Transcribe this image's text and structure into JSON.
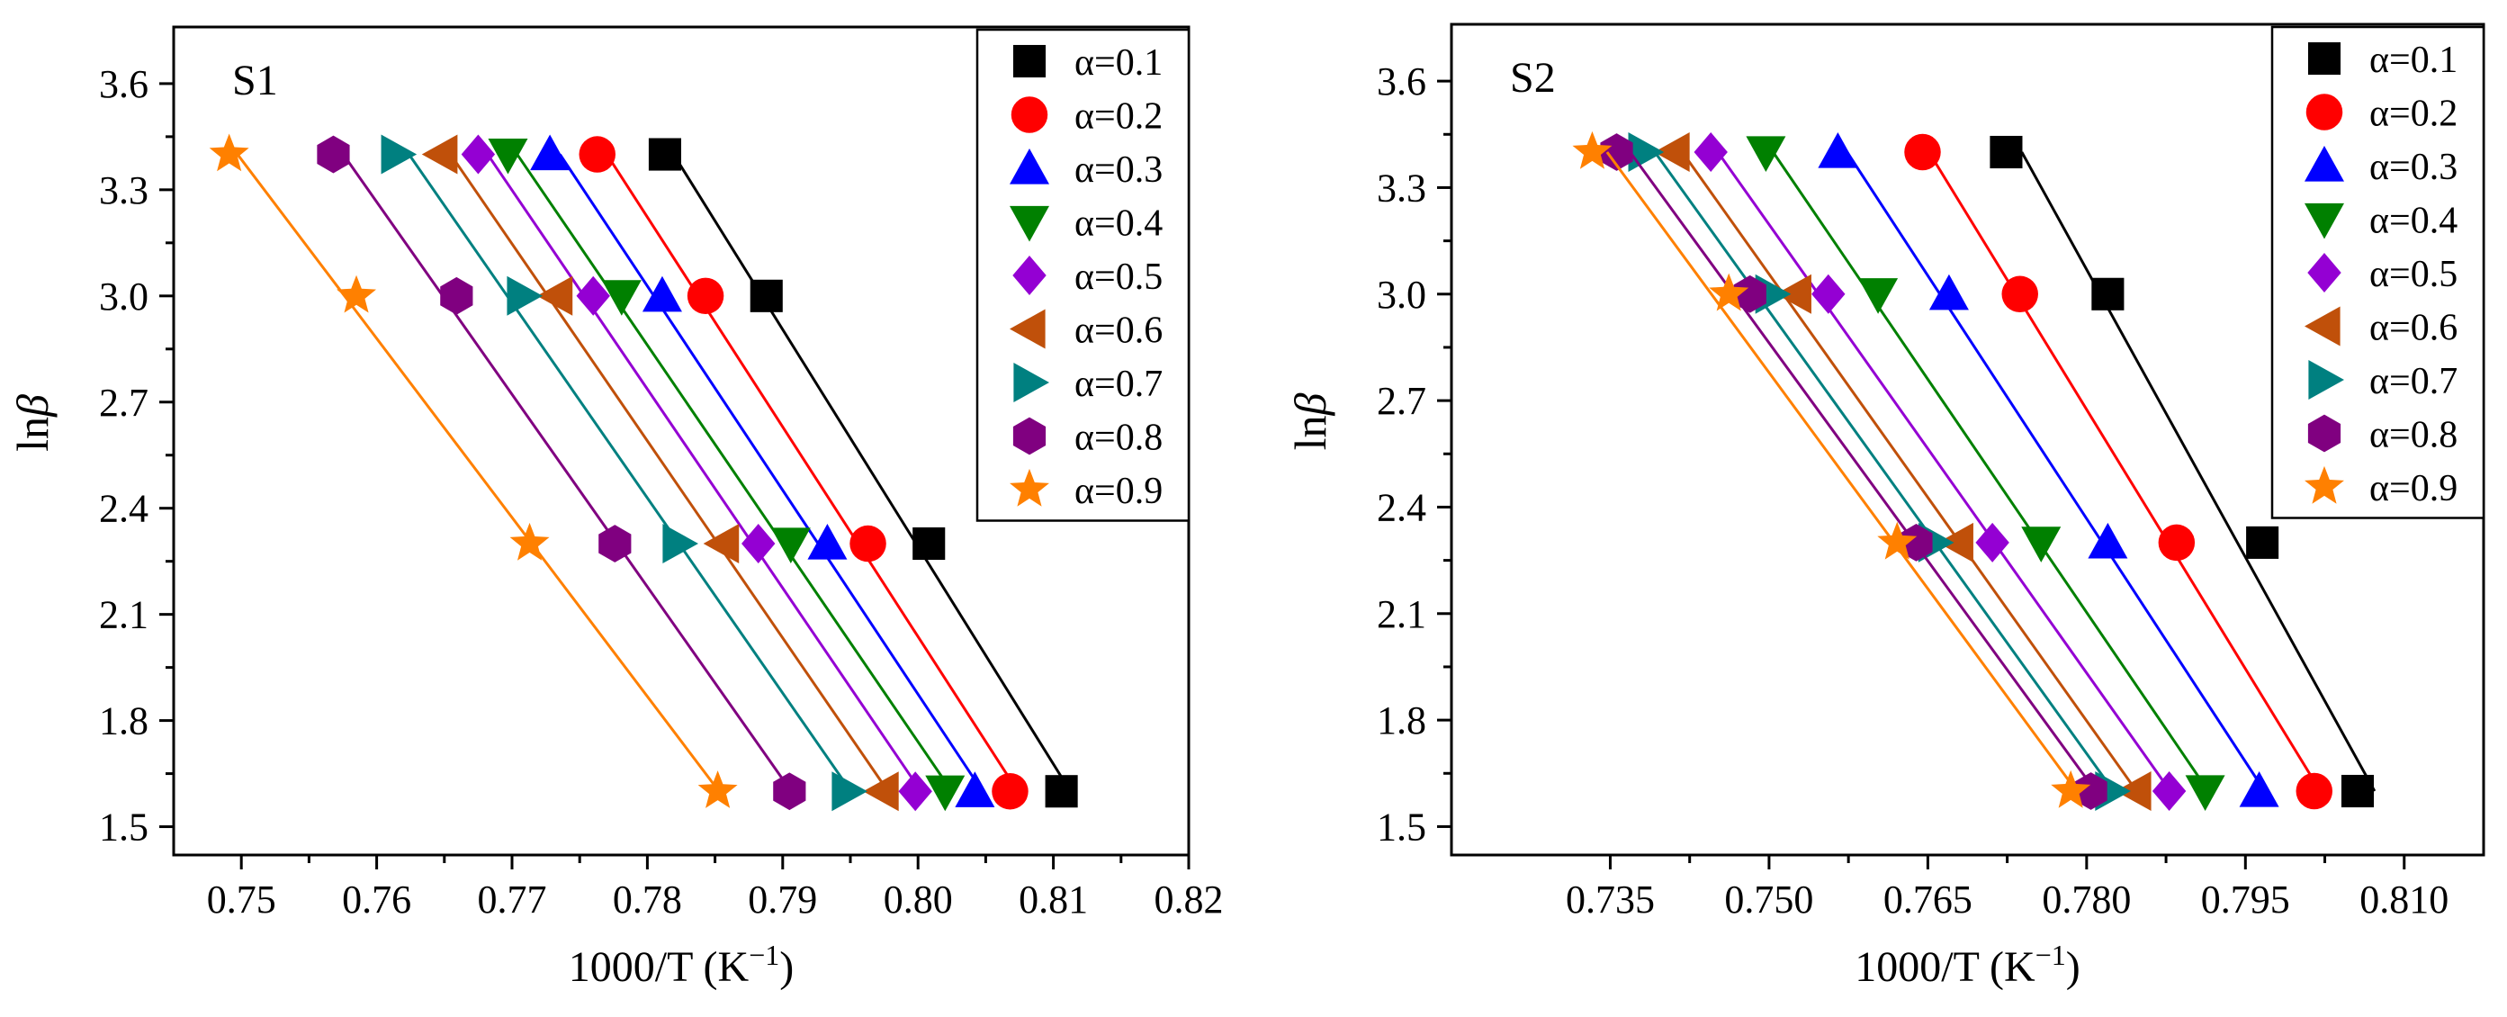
{
  "colors": {
    "axis": "#000000",
    "series": [
      "#000000",
      "#ff0000",
      "#0000ff",
      "#008000",
      "#9400d3",
      "#c0500a",
      "#008080",
      "#800080",
      "#ff8000"
    ]
  },
  "chart_data": [
    {
      "type": "scatter",
      "panel_label": "S1",
      "xlabel": "1000/T (K−1)",
      "xlabel_main": "1000/T (K",
      "xlabel_sup": "−1",
      "xlabel_close": ")",
      "ylabel_main": "ln",
      "ylabel_italic": "β",
      "xlim": [
        0.745,
        0.82
      ],
      "ylim": [
        1.42,
        3.76
      ],
      "x_ticks": [
        0.75,
        0.76,
        0.77,
        0.78,
        0.79,
        0.8,
        0.81,
        0.82
      ],
      "x_tick_labels": [
        "0.75",
        "0.76",
        "0.77",
        "0.78",
        "0.79",
        "0.80",
        "0.81",
        "0.82"
      ],
      "y_ticks": [
        1.5,
        1.8,
        2.1,
        2.4,
        2.7,
        3.0,
        3.3,
        3.6
      ],
      "y_tick_labels": [
        "1.5",
        "1.8",
        "2.1",
        "2.4",
        "2.7",
        "3.0",
        "3.3",
        "3.6"
      ],
      "y_levels": [
        3.4,
        3.0,
        2.3,
        1.6
      ],
      "legend_position": "top-right",
      "series": [
        {
          "name": "α=0.1",
          "marker": "square",
          "x": [
            0.7813,
            0.7888,
            0.8008,
            0.8106
          ]
        },
        {
          "name": "α=0.2",
          "marker": "circle",
          "x": [
            0.7763,
            0.7843,
            0.7963,
            0.8068
          ]
        },
        {
          "name": "α=0.3",
          "marker": "triangle-up",
          "x": [
            0.7728,
            0.7811,
            0.7933,
            0.8042
          ]
        },
        {
          "name": "α=0.4",
          "marker": "triangle-down",
          "x": [
            0.7697,
            0.7781,
            0.7906,
            0.802
          ]
        },
        {
          "name": "α=0.5",
          "marker": "diamond",
          "x": [
            0.7675,
            0.776,
            0.7882,
            0.7998
          ]
        },
        {
          "name": "α=0.6",
          "marker": "triangle-left",
          "x": [
            0.7648,
            0.7733,
            0.7856,
            0.7974
          ]
        },
        {
          "name": "α=0.7",
          "marker": "triangle-right",
          "x": [
            0.7615,
            0.7708,
            0.7823,
            0.7948
          ]
        },
        {
          "name": "α=0.8",
          "marker": "hexagon",
          "x": [
            0.7568,
            0.7659,
            0.7776,
            0.7905
          ]
        },
        {
          "name": "α=0.9",
          "marker": "star",
          "x": [
            0.7491,
            0.7585,
            0.7713,
            0.7852
          ]
        }
      ]
    },
    {
      "type": "scatter",
      "panel_label": "S2",
      "xlabel": "1000/T (K−1)",
      "xlabel_main": "1000/T (K",
      "xlabel_sup": "−1",
      "xlabel_close": ")",
      "ylabel_main": "ln",
      "ylabel_italic": "β",
      "xlim": [
        0.72,
        0.8175
      ],
      "ylim": [
        1.42,
        3.76
      ],
      "x_ticks": [
        0.735,
        0.75,
        0.765,
        0.78,
        0.795,
        0.81
      ],
      "x_tick_labels": [
        "0.735",
        "0.750",
        "0.765",
        "0.780",
        "0.795",
        "0.810"
      ],
      "y_ticks": [
        1.5,
        1.8,
        2.1,
        2.4,
        2.7,
        3.0,
        3.3,
        3.6
      ],
      "y_tick_labels": [
        "1.5",
        "1.8",
        "2.1",
        "2.4",
        "2.7",
        "3.0",
        "3.3",
        "3.6"
      ],
      "y_levels": [
        3.4,
        3.0,
        2.3,
        1.6
      ],
      "legend_position": "top-right",
      "series": [
        {
          "name": "α=0.1",
          "marker": "square",
          "x": [
            0.7724,
            0.782,
            0.7966,
            0.8056
          ]
        },
        {
          "name": "α=0.2",
          "marker": "circle",
          "x": [
            0.7645,
            0.7737,
            0.7885,
            0.8015
          ]
        },
        {
          "name": "α=0.3",
          "marker": "triangle-up",
          "x": [
            0.7565,
            0.767,
            0.782,
            0.7963
          ]
        },
        {
          "name": "α=0.4",
          "marker": "triangle-down",
          "x": [
            0.7497,
            0.7603,
            0.7757,
            0.7912
          ]
        },
        {
          "name": "α=0.5",
          "marker": "diamond",
          "x": [
            0.7445,
            0.7556,
            0.7711,
            0.7878
          ]
        },
        {
          "name": "α=0.6",
          "marker": "triangle-left",
          "x": [
            0.741,
            0.7525,
            0.7678,
            0.7846
          ]
        },
        {
          "name": "α=0.7",
          "marker": "triangle-right",
          "x": [
            0.7382,
            0.7502,
            0.7656,
            0.7823
          ]
        },
        {
          "name": "α=0.8",
          "marker": "hexagon",
          "x": [
            0.7356,
            0.7482,
            0.7639,
            0.7804
          ]
        },
        {
          "name": "α=0.9",
          "marker": "star",
          "x": [
            0.7333,
            0.7462,
            0.7621,
            0.7785
          ]
        }
      ]
    }
  ]
}
